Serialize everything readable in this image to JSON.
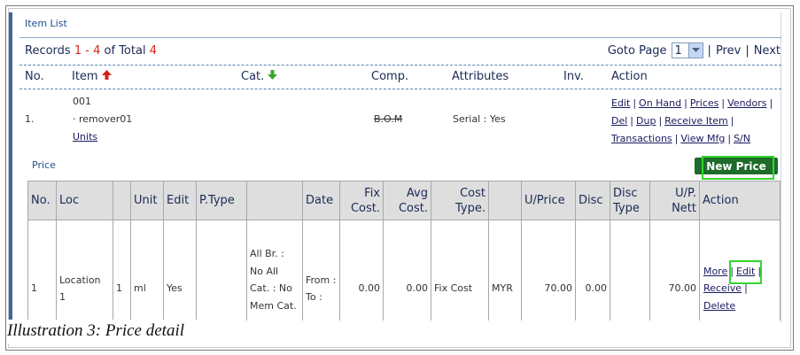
{
  "header": {
    "title": "Item List"
  },
  "records": {
    "label": "Records",
    "from": "1",
    "dash": "-",
    "to": "4",
    "of_total": "of Total",
    "total": "4"
  },
  "pagination": {
    "goto_label": "Goto Page",
    "page": "1",
    "separator": "|",
    "prev": "Prev",
    "next": "Next"
  },
  "item_table": {
    "columns": [
      "No.",
      "Item",
      "Cat.",
      "Comp.",
      "Attributes",
      "Inv.",
      "Action"
    ],
    "row": {
      "no": "1.",
      "code": "001",
      "name": "· remover01",
      "units": "Units",
      "comp": "B.O.M",
      "attributes": "Serial : Yes",
      "actions": [
        [
          "Edit",
          "On Hand",
          "Prices",
          "Vendors"
        ],
        [
          "Del",
          "Dup",
          "Receive Item"
        ],
        [
          "Transactions",
          "View Mfg",
          "S/N"
        ]
      ]
    },
    "separator": "|"
  },
  "price": {
    "title": "Price",
    "new_button": "New Price",
    "columns": [
      "No.",
      "Loc",
      null,
      "Unit",
      "Edit",
      "P.Type",
      null,
      "Date",
      "Fix Cost.",
      "Avg Cost.",
      "Cost Type.",
      null,
      "U/Price",
      "Disc",
      "Disc Type",
      "U/P. Nett",
      "Action"
    ],
    "rows": [
      [
        "1",
        "Location 1",
        "1",
        "ml",
        "Yes",
        null,
        "All Br. : No All Cat. : No Mem Cat. :",
        "From : To :",
        "0.00",
        "0.00",
        "Fix Cost",
        "MYR",
        "70.00",
        "0.00",
        null,
        "70.00"
      ]
    ],
    "actions": [
      [
        "More",
        "Edit"
      ],
      [
        "Receive"
      ],
      [
        "Delete"
      ]
    ],
    "separator": "|"
  },
  "caption": "Illustration 3: Price detail"
}
